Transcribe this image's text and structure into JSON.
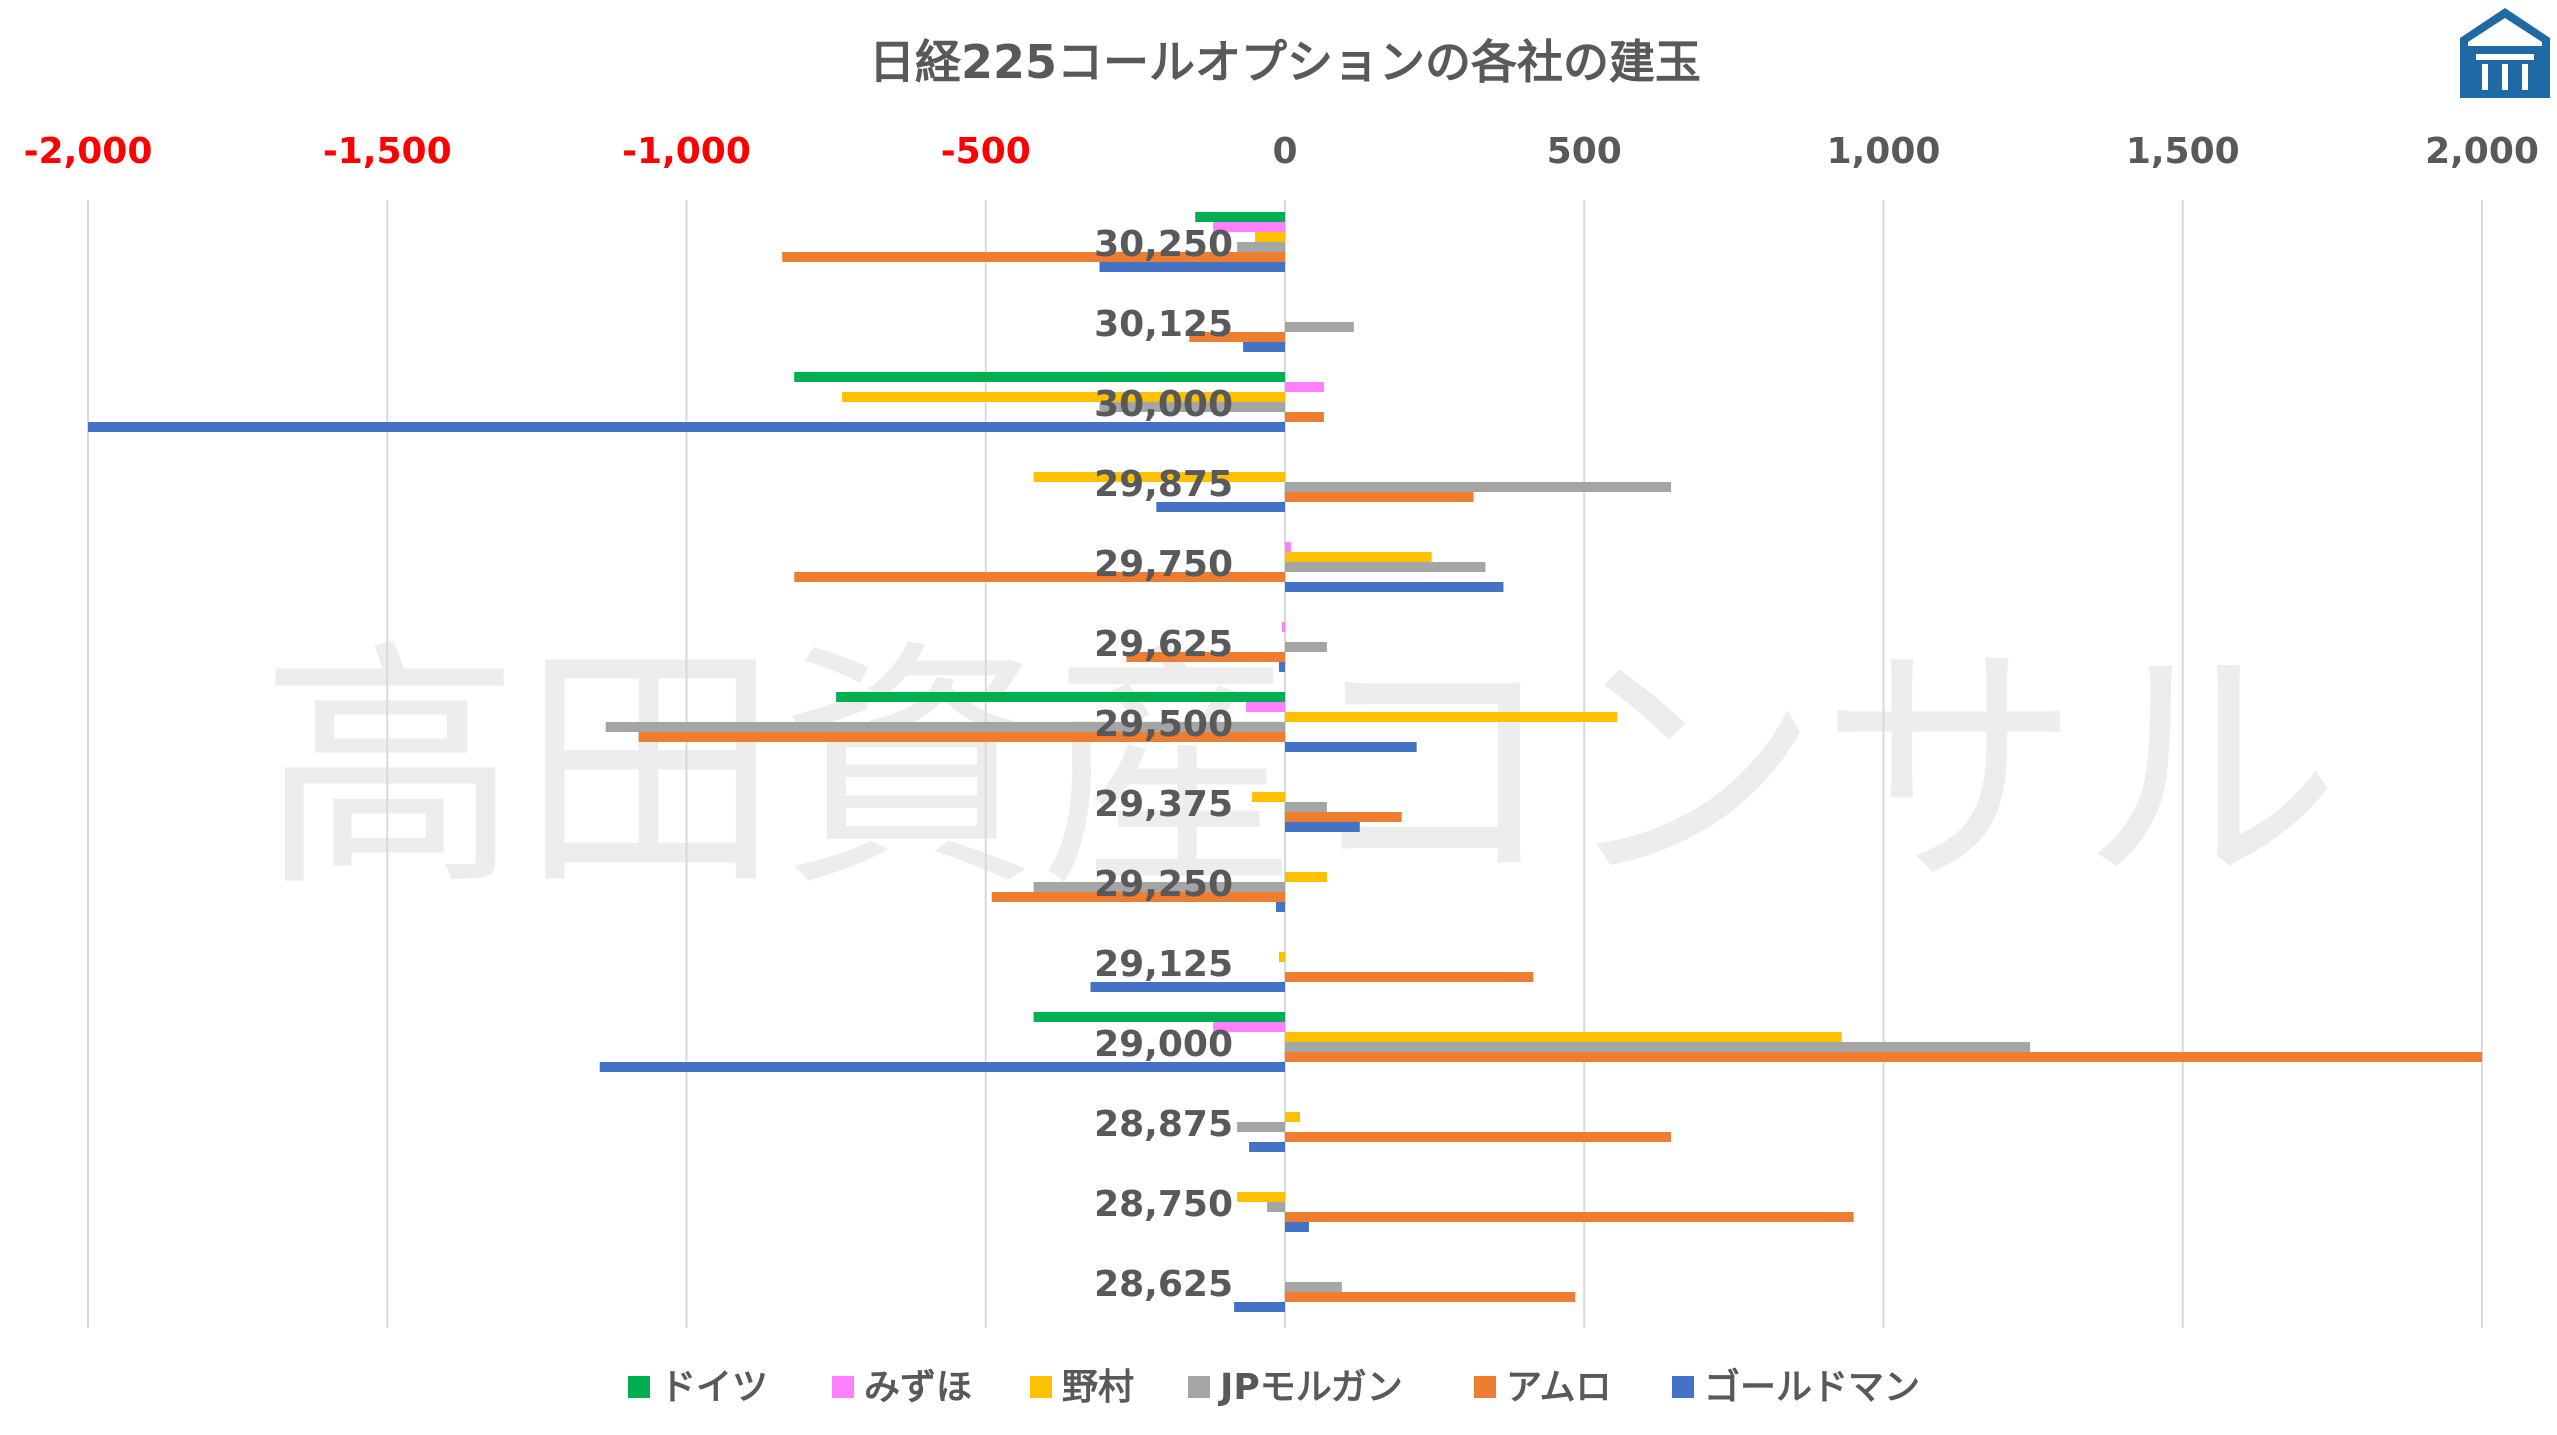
{
  "chart_data": {
    "type": "bar",
    "orientation": "horizontal",
    "title": "日経225コールオプションの各社の建玉",
    "watermark": "高田資産コンサル",
    "categories": [
      "30,250",
      "30,125",
      "30,000",
      "29,875",
      "29,750",
      "29,625",
      "29,500",
      "29,375",
      "29,250",
      "29,125",
      "29,000",
      "28,875",
      "28,750",
      "28,625"
    ],
    "xlim": [
      -2000,
      2000
    ],
    "xticks": [
      -2000,
      -1500,
      -1000,
      -500,
      0,
      500,
      1000,
      1500,
      2000
    ],
    "xtick_labels": [
      "-2,000",
      "-1,500",
      "-1,000",
      "-500",
      "0",
      "500",
      "1,000",
      "1,500",
      "2,000"
    ],
    "negative_tick_color": "#ff0000",
    "positive_tick_color": "#595959",
    "grid": "vertical",
    "legend_position": "bottom",
    "series": [
      {
        "name": "ドイツ",
        "color": "#00b050",
        "values": [
          -150,
          0,
          -820,
          0,
          0,
          0,
          -750,
          0,
          0,
          0,
          -420,
          0,
          0,
          0
        ]
      },
      {
        "name": "みずほ",
        "color": "#ff80ff",
        "values": [
          -120,
          0,
          65,
          0,
          10,
          -5,
          -65,
          0,
          0,
          0,
          -120,
          0,
          0,
          0
        ]
      },
      {
        "name": "野村",
        "color": "#ffc000",
        "values": [
          -50,
          0,
          -740,
          -420,
          245,
          0,
          555,
          -55,
          70,
          -10,
          930,
          25,
          -80,
          0
        ]
      },
      {
        "name": "JPモルガン",
        "color": "#a5a5a5",
        "values": [
          -80,
          115,
          -310,
          645,
          335,
          70,
          -1135,
          70,
          -420,
          0,
          1245,
          -80,
          -30,
          95
        ]
      },
      {
        "name": "アムロ",
        "color": "#ed7d31",
        "values": [
          -840,
          -160,
          65,
          315,
          -820,
          -265,
          -1080,
          195,
          -490,
          415,
          2000,
          645,
          950,
          485
        ]
      },
      {
        "name": "ゴールドマン",
        "color": "#4472c4",
        "values": [
          -310,
          -70,
          -2000,
          -215,
          365,
          -10,
          220,
          125,
          -15,
          -325,
          -1145,
          -60,
          40,
          -85
        ]
      }
    ]
  }
}
